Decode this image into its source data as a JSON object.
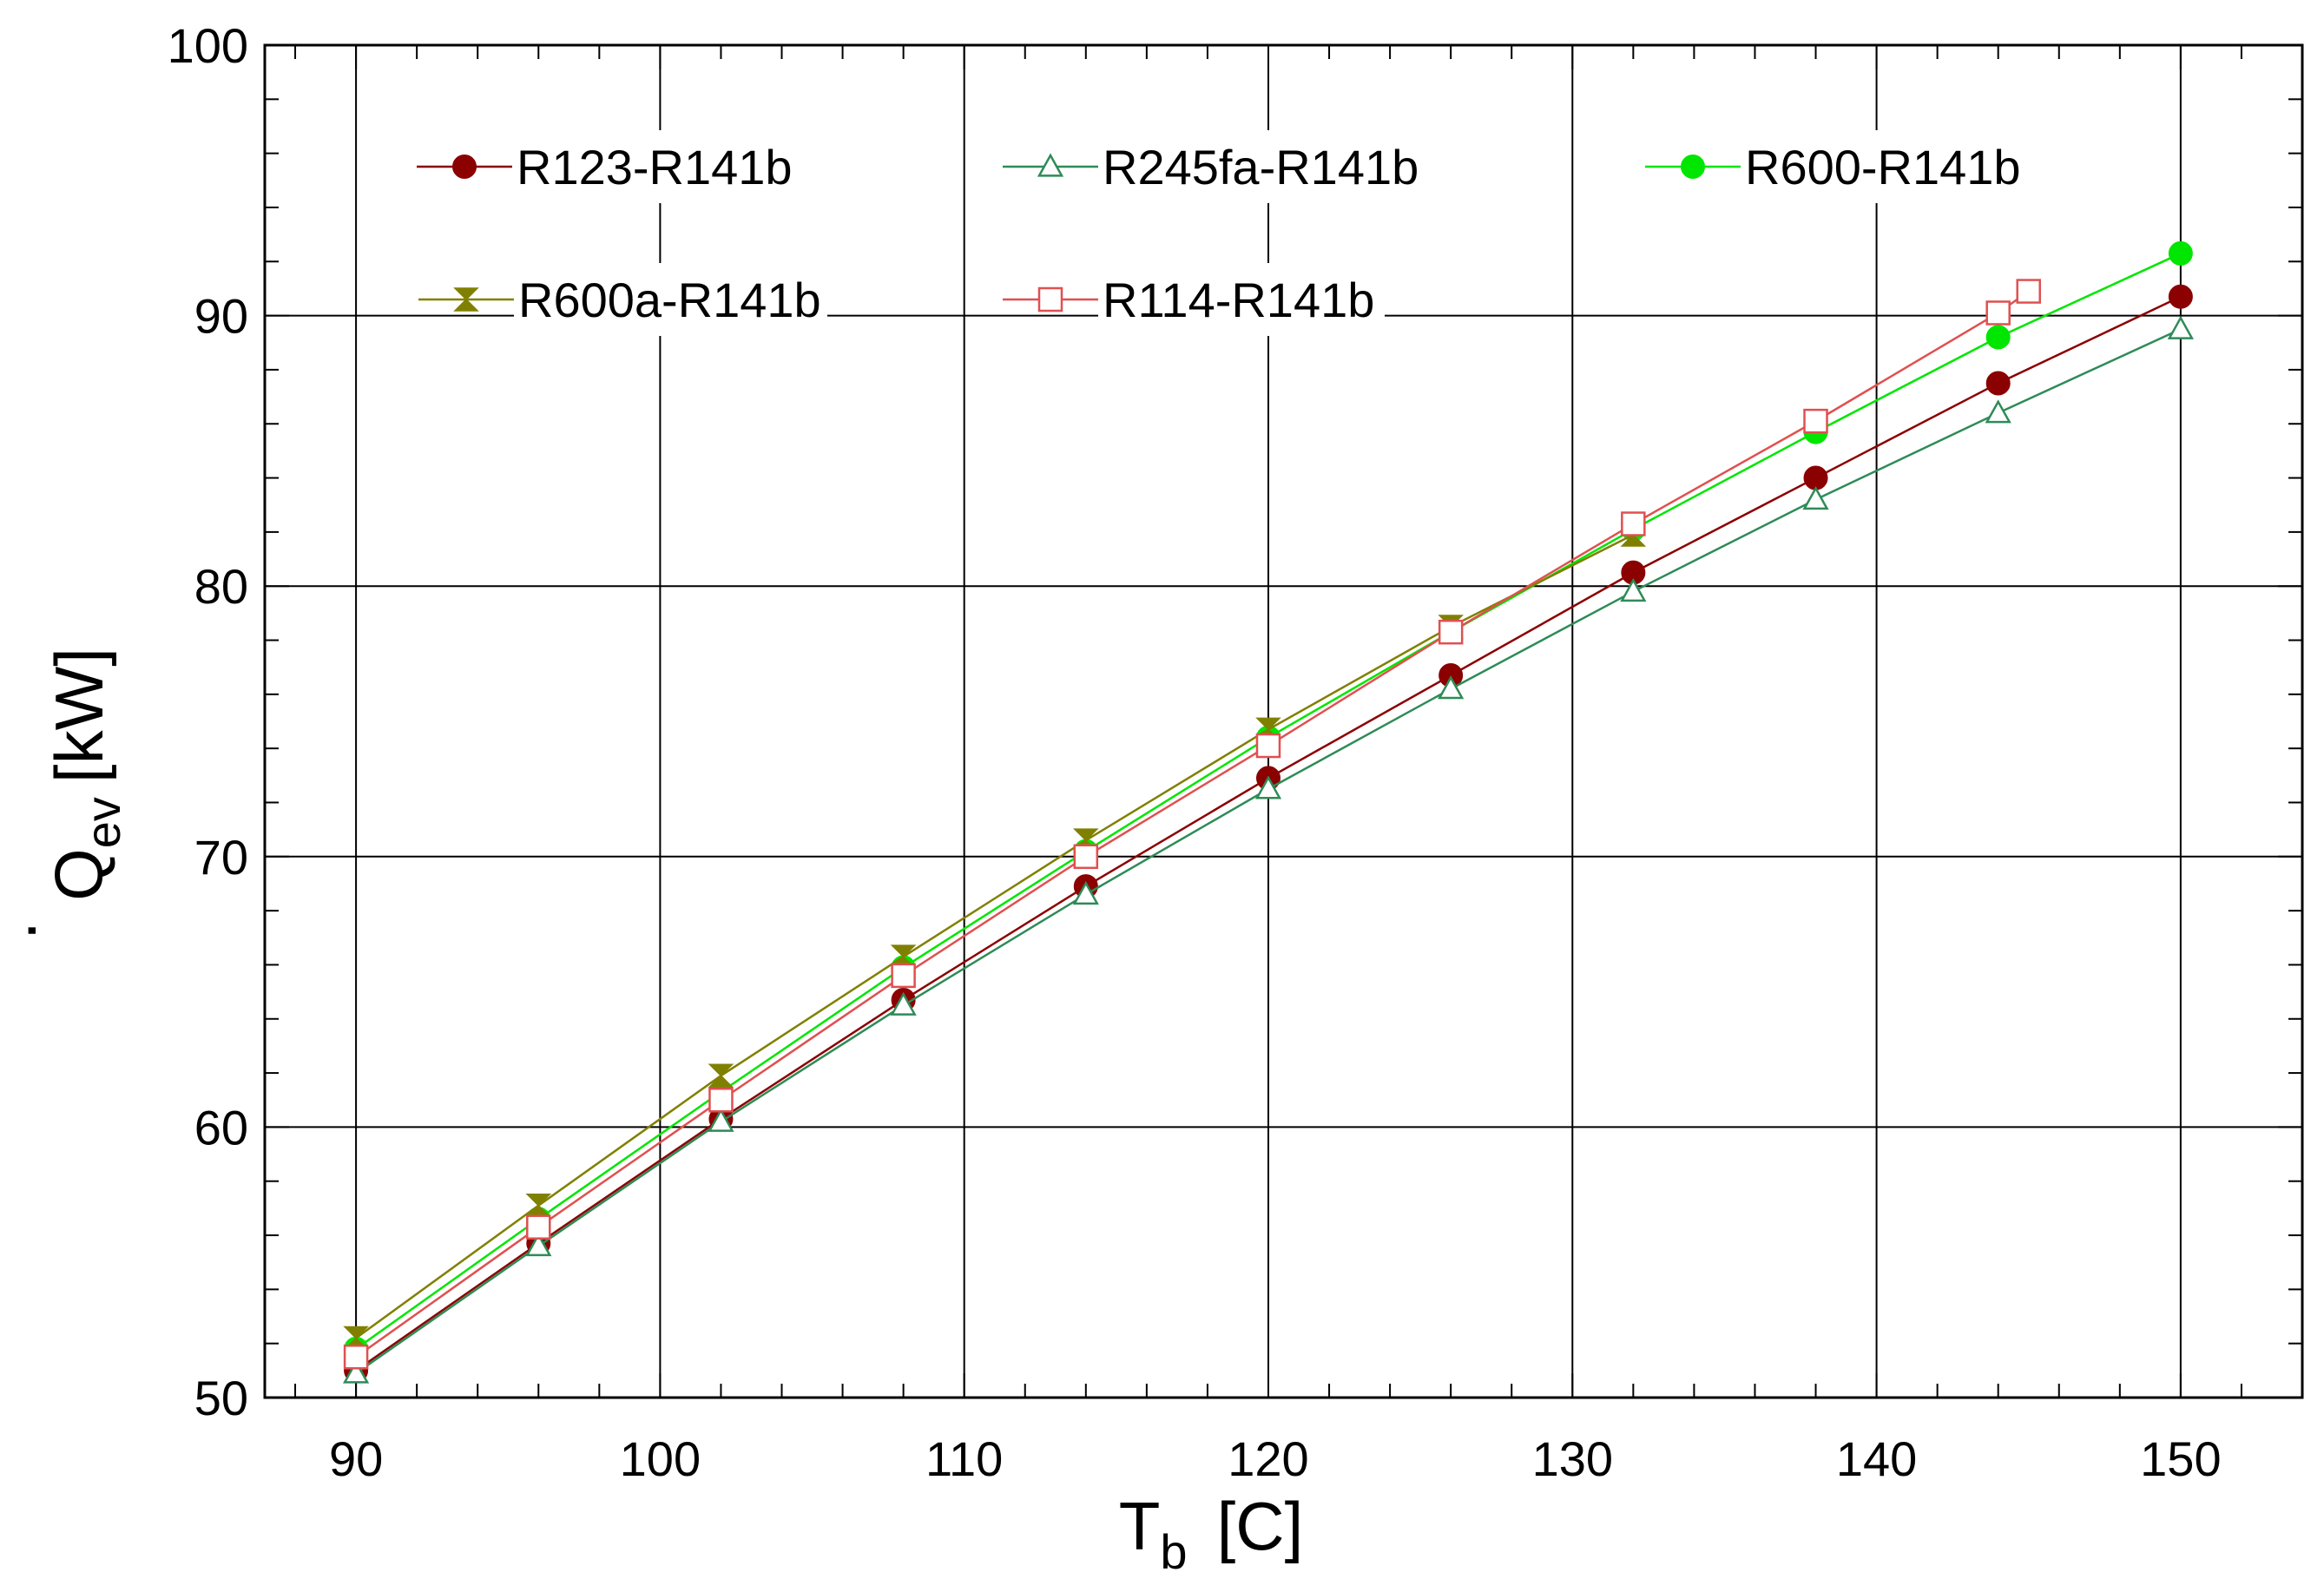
{
  "chart_data": {
    "type": "line",
    "title": "",
    "xlabel_main": "T",
    "xlabel_sub": "b",
    "xlabel_unit": "[C]",
    "ylabel_main": "Q",
    "ylabel_dot": "·",
    "ylabel_sub": "ev",
    "ylabel_unit": "[kW]",
    "xlim": [
      87,
      154
    ],
    "ylim": [
      50,
      100
    ],
    "xticks": [
      90,
      100,
      110,
      120,
      130,
      140,
      150
    ],
    "xtick_labels": [
      "90",
      "100",
      "110",
      "120",
      "130",
      "140",
      "150"
    ],
    "yticks": [
      50,
      60,
      70,
      80,
      90,
      100
    ],
    "ytick_labels": [
      "50",
      "60",
      "70",
      "80",
      "90",
      "100"
    ],
    "grid": true,
    "legend_placement": "top-left, inside plot",
    "series": [
      {
        "name": "R123-R141b",
        "color": "#8b0000",
        "marker": "filled-circle",
        "x": [
          90,
          96,
          102,
          108,
          114,
          120,
          126,
          132,
          138,
          144,
          150
        ],
        "y": [
          51.0,
          55.7,
          60.3,
          64.7,
          68.9,
          72.9,
          76.7,
          80.5,
          84.0,
          87.5,
          90.7
        ]
      },
      {
        "name": "R245fa-R141b",
        "color": "#2e8b57",
        "marker": "open-triangle",
        "x": [
          90,
          96,
          102,
          108,
          114,
          120,
          126,
          132,
          138,
          144,
          150
        ],
        "y": [
          50.9,
          55.6,
          60.2,
          64.5,
          68.6,
          72.5,
          76.2,
          79.8,
          83.2,
          86.4,
          89.5
        ]
      },
      {
        "name": "R600-R141b",
        "color": "#00e600",
        "marker": "filled-circle",
        "x": [
          90,
          96,
          102,
          108,
          114,
          120,
          126,
          132,
          138,
          144,
          150
        ],
        "y": [
          51.8,
          56.6,
          61.3,
          65.9,
          70.2,
          74.4,
          78.3,
          82.1,
          85.7,
          89.2,
          92.3
        ]
      },
      {
        "name": "R600a-R141b",
        "color": "#808000",
        "marker": "hourglass",
        "x": [
          90,
          96,
          102,
          108,
          114,
          120,
          126,
          132
        ],
        "y": [
          52.2,
          57.1,
          61.9,
          66.3,
          70.6,
          74.7,
          78.5,
          81.9
        ]
      },
      {
        "name": "R114-R141b",
        "color": "#e05050",
        "marker": "open-square",
        "x": [
          90,
          96,
          102,
          108,
          114,
          120,
          126,
          132,
          138,
          144,
          145
        ],
        "y": [
          51.5,
          56.3,
          61.0,
          65.6,
          70.0,
          74.1,
          78.3,
          82.3,
          86.1,
          90.1,
          90.9
        ]
      }
    ]
  }
}
